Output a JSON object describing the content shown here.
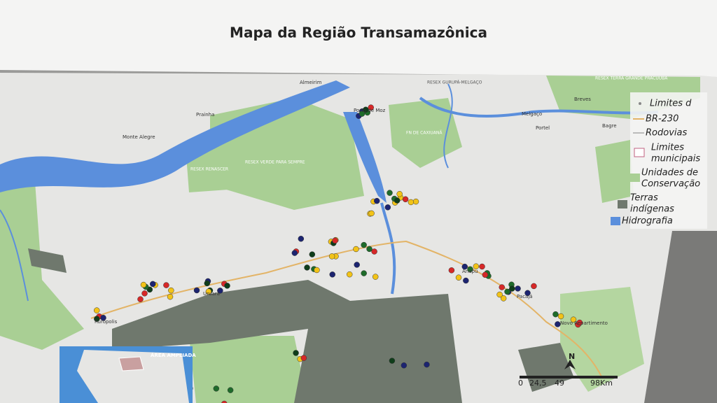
{
  "header": {
    "title": "Mapa da Região Transamazônica"
  },
  "legend": [
    "Limites d",
    "BR-230",
    "Rodovias",
    "Limites",
    "municipais",
    "Unidades de",
    "Conservação",
    "Terras",
    "indígenas",
    "Hidrografia"
  ],
  "places": [
    "Almeirim",
    "Prainha",
    "Monte Alegre",
    "Porto de Moz",
    "Melgaço",
    "Portel",
    "Breves",
    "Bagre",
    "Uruará",
    "Anapu",
    "Pacajá",
    "Novo Repartimento",
    "Rurópolis"
  ],
  "areas": [
    "RESEX VERDE PARA SEMPRE",
    "RESEX RENASCER",
    "FN DE CAXIUANÃ",
    "RESEX GURUPÁ-MELGAÇO",
    "RESEX TERRA GRANDE PRACUUBA"
  ],
  "inset": "ÁREA AMPLIADA",
  "north": "N",
  "scale": [
    "0",
    "24,5",
    "49",
    "98Km"
  ]
}
